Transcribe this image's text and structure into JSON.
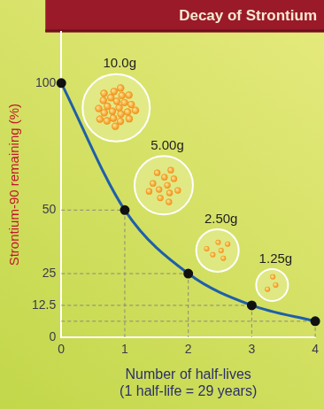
{
  "chart_data": {
    "type": "line",
    "title": "Decay of Strontium",
    "x_label": [
      "Number of half-lives",
      "(1 half-life = 29 years)"
    ],
    "y_label": "Strontium-90 remaining (%)",
    "x": [
      0,
      1,
      2,
      3,
      4
    ],
    "values": [
      100,
      50,
      25,
      12.5,
      6.25
    ],
    "color": "#1f5fa8",
    "marker": "circle",
    "grid": false,
    "xlim": [
      0,
      4
    ],
    "ylim": [
      0,
      120
    ],
    "xticks": [
      0,
      1,
      2,
      3,
      4
    ],
    "yticks": [
      0,
      12.5,
      25,
      50,
      100
    ],
    "annotations": [
      {
        "text": "10.0g",
        "x": 0
      },
      {
        "text": "5.00g",
        "x": 1
      },
      {
        "text": "2.50g",
        "x": 2
      },
      {
        "text": "1.25g",
        "x": 3
      }
    ]
  }
}
